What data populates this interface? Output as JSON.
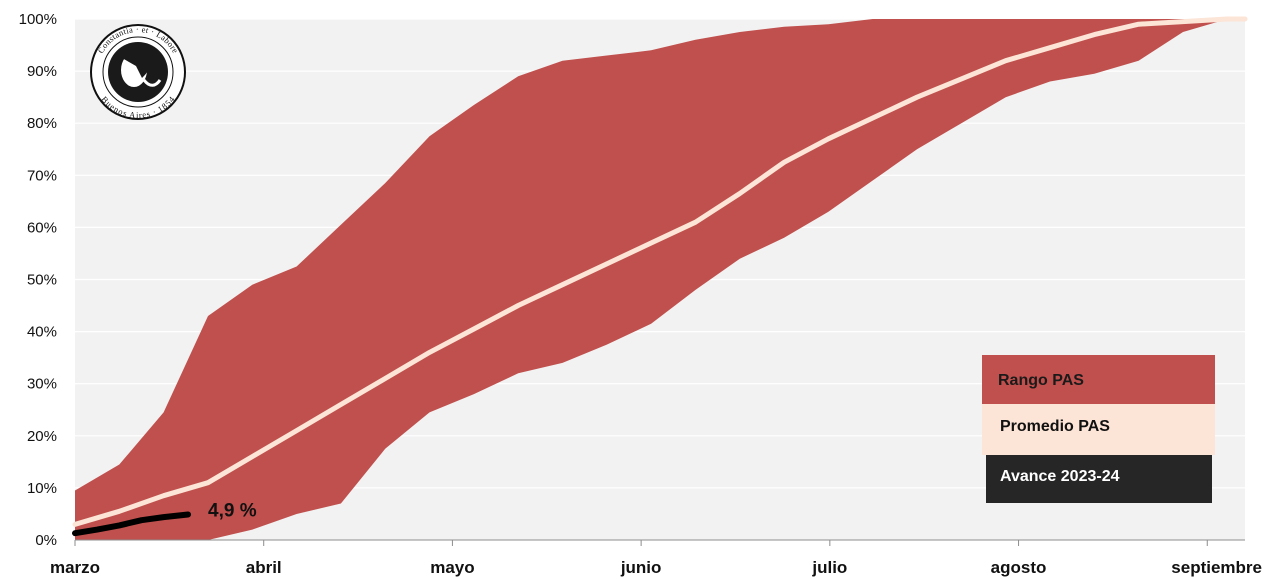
{
  "chart_data": {
    "type": "area",
    "x_unit": "weeks from start of march",
    "categories": [
      "marzo",
      "abril",
      "mayo",
      "junio",
      "julio",
      "agosto",
      "septiembre"
    ],
    "y_ticks": [
      "0%",
      "10%",
      "20%",
      "30%",
      "40%",
      "50%",
      "60%",
      "70%",
      "80%",
      "90%",
      "100%"
    ],
    "ylim": [
      0,
      100
    ],
    "xlim": [
      0,
      26.4
    ],
    "grid": true,
    "legend_position": "bottom-right",
    "series": [
      {
        "name": "Rango PAS",
        "kind": "band",
        "color": "#c0504d",
        "x": [
          0,
          1,
          2,
          3,
          4,
          5,
          6,
          7,
          8,
          9,
          10,
          11,
          12,
          13,
          14,
          15,
          16,
          17,
          18,
          19,
          20,
          21,
          22,
          23,
          24,
          25,
          26,
          26.4
        ],
        "upper": [
          9.5,
          14.5,
          24.5,
          43,
          49,
          52.5,
          60.5,
          68.5,
          77.5,
          83.5,
          89,
          92,
          93,
          94,
          96,
          97.5,
          98.5,
          99,
          100,
          100,
          100,
          100,
          100,
          100,
          100,
          100,
          100,
          100
        ],
        "lower": [
          0,
          0,
          0,
          0,
          2,
          5,
          7,
          17.5,
          24.5,
          28,
          32,
          34,
          37.5,
          41.5,
          48,
          54,
          58,
          63,
          69,
          75,
          80,
          85,
          88,
          89.5,
          92,
          97.5,
          100,
          100
        ]
      },
      {
        "name": "Promedio PAS",
        "kind": "line",
        "color": "#fce4d6",
        "x": [
          0,
          1,
          2,
          3,
          4,
          5,
          6,
          7,
          8,
          9,
          10,
          11,
          12,
          13,
          14,
          15,
          16,
          17,
          18,
          19,
          20,
          21,
          22,
          23,
          24,
          25,
          26,
          26.4
        ],
        "values": [
          3,
          5.5,
          8.5,
          11,
          16,
          21,
          26,
          31,
          36,
          40.5,
          45,
          49,
          53,
          57,
          61,
          66.5,
          72.5,
          77,
          81,
          85,
          88.5,
          92,
          94.5,
          97,
          99,
          99.5,
          100,
          100
        ]
      },
      {
        "name": "Avance 2023-24",
        "kind": "line",
        "color": "#000000",
        "x": [
          0,
          0.5,
          1,
          1.5,
          2,
          2.55
        ],
        "values": [
          1.3,
          2.0,
          2.8,
          3.8,
          4.4,
          4.9
        ]
      }
    ],
    "annotations": [
      {
        "text": "4,9 %",
        "x": 2.55,
        "y": 4.9
      }
    ],
    "legend": [
      {
        "label": "Rango PAS",
        "bg": "#c0504d",
        "fg": "#1a1a1a"
      },
      {
        "label": "Promedio PAS",
        "bg": "#fce4d6",
        "fg": "#111111"
      },
      {
        "label": "Avance 2023-24",
        "bg": "#262626",
        "fg": "#ffffff"
      }
    ],
    "colors": {
      "plot_bg": "#f2f2f2",
      "grid": "#ffffff"
    }
  },
  "logo": {
    "text_top": "Constantia · et · Labore",
    "text_bottom": "Buenos Aires · 1854"
  }
}
